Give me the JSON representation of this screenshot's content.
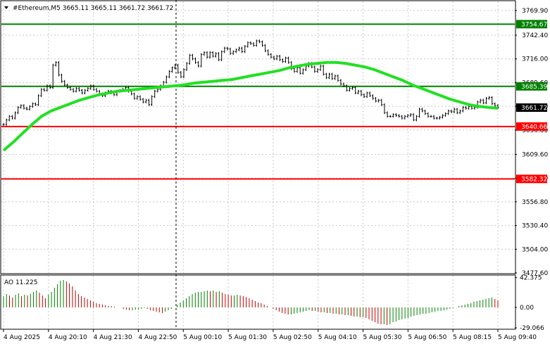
{
  "header": {
    "symbol_line": "#Ethereum,M5  3665.11 3665.11 3661.72 3661.72"
  },
  "chart_data": [
    {
      "type": "candlestick",
      "symbol": "#Ethereum",
      "timeframe": "M5",
      "ohlc_header": {
        "open": 3665.11,
        "high": 3665.11,
        "low": 3661.72,
        "close": 3661.72
      },
      "ylim": [
        3477.6,
        3780
      ],
      "yticks": [
        "3769.90",
        "3742.40",
        "3716.00",
        "3689.60",
        "3663.20",
        "3636.80",
        "3609.60",
        "3583.20",
        "3556.80",
        "3530.40",
        "3504.00",
        "3477.60"
      ],
      "xticks": [
        "4 Aug 2025",
        "4 Aug 20:10",
        "4 Aug 21:30",
        "4 Aug 22:50",
        "5 Aug 00:10",
        "5 Aug 01:30",
        "5 Aug 02:50",
        "5 Aug 04:10",
        "5 Aug 05:30",
        "5 Aug 06:50",
        "5 Aug 08:15",
        "5 Aug 09:40"
      ],
      "grid": true,
      "levels": [
        {
          "value": 3754.67,
          "label": "3754.67",
          "color": "#008000"
        },
        {
          "value": 3685.39,
          "label": "3685.39",
          "color": "#008000"
        },
        {
          "value": 3640.66,
          "label": "3640.66",
          "color": "#ff0000"
        },
        {
          "value": 3582.32,
          "label": "3582.32",
          "color": "#ff0000"
        }
      ],
      "current_price": {
        "value": 3661.72,
        "label": "3661.72"
      },
      "close_series": [
        3643,
        3648,
        3652,
        3650,
        3656,
        3662,
        3664,
        3661,
        3660,
        3663,
        3666,
        3665,
        3675,
        3682,
        3681,
        3686,
        3684,
        3709,
        3712,
        3698,
        3691,
        3687,
        3684,
        3682,
        3680,
        3683,
        3681,
        3678,
        3681,
        3683,
        3686,
        3682,
        3680,
        3677,
        3675,
        3678,
        3680,
        3678,
        3676,
        3680,
        3681,
        3682,
        3684,
        3680,
        3677,
        3672,
        3674,
        3671,
        3668,
        3670,
        3665,
        3674,
        3680,
        3682,
        3686,
        3690,
        3696,
        3702,
        3706,
        3709,
        3701,
        3696,
        3704,
        3711,
        3720,
        3716,
        3712,
        3708,
        3721,
        3723,
        3718,
        3723,
        3719,
        3722,
        3715,
        3724,
        3728,
        3727,
        3722,
        3724,
        3726,
        3728,
        3724,
        3730,
        3734,
        3733,
        3731,
        3736,
        3735,
        3731,
        3725,
        3721,
        3718,
        3716,
        3719,
        3715,
        3713,
        3717,
        3712,
        3705,
        3702,
        3706,
        3700,
        3704,
        3708,
        3711,
        3707,
        3702,
        3704,
        3708,
        3699,
        3695,
        3699,
        3694,
        3697,
        3692,
        3688,
        3686,
        3681,
        3683,
        3684,
        3678,
        3680,
        3676,
        3674,
        3678,
        3675,
        3672,
        3669,
        3670,
        3665,
        3656,
        3652,
        3652,
        3654,
        3653,
        3652,
        3650,
        3652,
        3653,
        3654,
        3648,
        3652,
        3660,
        3658,
        3655,
        3652,
        3652,
        3650,
        3650,
        3651,
        3653,
        3655,
        3658,
        3657,
        3660,
        3656,
        3658,
        3662,
        3661,
        3663,
        3661,
        3662,
        3668,
        3670,
        3667,
        3672,
        3673,
        3666,
        3664,
        3661.72
      ],
      "ma_series": [
        3614,
        3623,
        3633,
        3643,
        3652,
        3658,
        3662,
        3666,
        3670,
        3673,
        3676,
        3678,
        3680,
        3681,
        3682,
        3683,
        3684,
        3685,
        3686,
        3687,
        3689,
        3690,
        3691,
        3692,
        3693,
        3695,
        3697,
        3699,
        3701,
        3703,
        3706,
        3708,
        3710,
        3711,
        3712,
        3712,
        3711,
        3709,
        3707,
        3704,
        3700,
        3696,
        3692,
        3687,
        3683,
        3679,
        3675,
        3671,
        3668,
        3665,
        3663,
        3662,
        3661
      ],
      "indicator": {
        "name": "AO",
        "period_label": "11.225",
        "label": "AO 11.225",
        "yticks": [
          "42.375",
          "0.00",
          "-29.066"
        ],
        "ylim": [
          -30,
          45
        ],
        "values": [
          16,
          19,
          17,
          14,
          18,
          20,
          16,
          18,
          17,
          19,
          22,
          24,
          21,
          17,
          13,
          18,
          22,
          28,
          33,
          38,
          39,
          37,
          34,
          30,
          24,
          19,
          16,
          14,
          12,
          10,
          8,
          6,
          5,
          4,
          3,
          2,
          2,
          1,
          0,
          0,
          -2,
          -3,
          -4,
          -4,
          -3,
          -3,
          -2,
          -1,
          -2,
          -4,
          -5,
          -6,
          -7,
          -8,
          -6,
          -4,
          -2,
          0,
          3,
          7,
          10,
          13,
          16,
          19,
          21,
          22,
          22,
          23,
          24,
          23,
          24,
          22,
          23,
          21,
          19,
          18,
          17,
          17,
          18,
          17,
          16,
          15,
          13,
          11,
          9,
          7,
          6,
          4,
          2,
          0,
          -2,
          -4,
          -6,
          -8,
          -9,
          -10,
          -10,
          -9,
          -8,
          -7,
          -6,
          -5,
          -4,
          -5,
          -5,
          -6,
          -7,
          -7,
          -8,
          -8,
          -9,
          -9,
          -10,
          -10,
          -11,
          -11,
          -12,
          -13,
          -13,
          -14,
          -14,
          -15,
          -17,
          -19,
          -21,
          -23,
          -24,
          -24,
          -25,
          -24,
          -21,
          -20,
          -18,
          -17,
          -16,
          -15,
          -13,
          -12,
          -11,
          -10,
          -9,
          -9,
          -8,
          -7,
          -6,
          -5,
          -5,
          -4,
          -3,
          -2,
          -1,
          0,
          2,
          3,
          4,
          5,
          6,
          8,
          9,
          10,
          11,
          12,
          13,
          14,
          12,
          10
        ]
      },
      "colors": {
        "ma": "#22e022",
        "bar": "#000000",
        "ao_up": "#008000",
        "ao_down": "#c00000",
        "level_green": "#008000",
        "level_red": "#ff0000",
        "grid": "#c8c8c8"
      }
    }
  ]
}
